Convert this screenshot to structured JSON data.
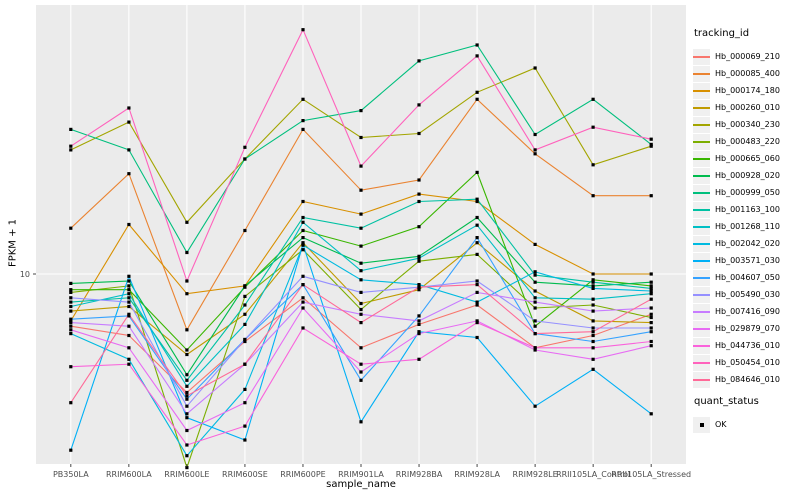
{
  "figure": {
    "panel_bg": "#EBEBEB",
    "grid_color": "#FFFFFF",
    "tick_text_color": "#4D4D4D",
    "point_color": "#000000"
  },
  "chart_data": {
    "type": "line",
    "title": "",
    "xlabel": "sample_name",
    "ylabel": "FPKM + 1",
    "y_scale": "log10",
    "y_tick_labels": [
      "10"
    ],
    "grid": true,
    "legend_position": "right",
    "legend_title": "tracking_id",
    "marker": "black-square",
    "categories": [
      "PB350LA",
      "RRIM600LA",
      "RRIM600LE",
      "RRIM600SE",
      "RRIM600PE",
      "RRIM901LA",
      "RRIM928BA",
      "RRIM928LA",
      "RRIM928LE",
      "RRII105LA_Control",
      "RRII105LA_Stressed"
    ],
    "series": [
      {
        "name": "Hb_000069_210",
        "color": "#F8766D",
        "values": [
          6.3,
          5.8,
          3.5,
          5.5,
          8.1,
          5.2,
          6.4,
          7.6,
          5.2,
          5.8,
          7.0
        ]
      },
      {
        "name": "Hb_000085_400",
        "color": "#EA8331",
        "values": [
          15.0,
          24.3,
          6.1,
          14.7,
          36.0,
          21.0,
          23.0,
          47.0,
          29.0,
          20.0,
          20.0
        ]
      },
      {
        "name": "Hb_000174_180",
        "color": "#D89000",
        "values": [
          6.6,
          15.5,
          8.4,
          9.0,
          19.0,
          17.0,
          20.3,
          19.0,
          13.0,
          10.0,
          10.0
        ]
      },
      {
        "name": "Hb_000260_010",
        "color": "#C09B00",
        "values": [
          7.2,
          7.5,
          4.9,
          7.0,
          13.2,
          7.7,
          8.7,
          13.2,
          8.6,
          6.6,
          6.5
        ]
      },
      {
        "name": "Hb_000340_230",
        "color": "#A3A500",
        "values": [
          30.0,
          38.4,
          15.8,
          27.7,
          47.0,
          33.5,
          34.7,
          50.0,
          62.0,
          26.3,
          31.0
        ]
      },
      {
        "name": "Hb_000483_220",
        "color": "#7CAE00",
        "values": [
          8.5,
          9.0,
          1.8,
          8.2,
          12.4,
          7.3,
          11.2,
          11.9,
          7.4,
          7.6,
          6.8
        ]
      },
      {
        "name": "Hb_000665_060",
        "color": "#39B600",
        "values": [
          8.7,
          8.7,
          5.1,
          8.9,
          14.7,
          12.8,
          15.2,
          24.6,
          6.3,
          9.5,
          9.0
        ]
      },
      {
        "name": "Hb_000928_020",
        "color": "#00BB4E",
        "values": [
          9.2,
          9.4,
          4.1,
          9.0,
          13.8,
          11.0,
          11.7,
          16.5,
          9.3,
          9.0,
          9.3
        ]
      },
      {
        "name": "Hb_000999_050",
        "color": "#00BF7D",
        "values": [
          36.0,
          30.0,
          12.1,
          27.7,
          38.9,
          42.5,
          66.0,
          76.0,
          34.4,
          47.0,
          31.5
        ]
      },
      {
        "name": "Hb_001163_100",
        "color": "#00C1A3",
        "values": [
          7.8,
          8.1,
          3.9,
          7.6,
          16.5,
          15.0,
          19.0,
          19.4,
          9.9,
          9.3,
          8.8
        ]
      },
      {
        "name": "Hb_001268_110",
        "color": "#00BFC4",
        "values": [
          7.5,
          8.4,
          3.7,
          6.4,
          15.8,
          10.3,
          11.5,
          15.4,
          8.1,
          8.0,
          8.4
        ]
      },
      {
        "name": "Hb_002042_020",
        "color": "#00BAE0",
        "values": [
          5.9,
          4.7,
          2.0,
          3.6,
          12.9,
          9.5,
          9.1,
          7.8,
          10.2,
          8.8,
          8.6
        ]
      },
      {
        "name": "Hb_003571_030",
        "color": "#00B0F6",
        "values": [
          2.1,
          9.8,
          2.8,
          2.3,
          13.0,
          2.7,
          6.0,
          5.7,
          3.1,
          4.3,
          2.9
        ]
      },
      {
        "name": "Hb_004607_050",
        "color": "#35A2FF",
        "values": [
          6.7,
          6.9,
          3.3,
          5.6,
          9.1,
          3.9,
          6.9,
          13.8,
          5.9,
          5.5,
          6.0
        ]
      },
      {
        "name": "Hb_005490_030",
        "color": "#9590FF",
        "values": [
          8.1,
          7.8,
          3.1,
          5.6,
          9.8,
          8.5,
          8.9,
          9.4,
          6.6,
          6.2,
          6.2
        ]
      },
      {
        "name": "Hb_007416_090",
        "color": "#C77CFF",
        "values": [
          6.5,
          6.3,
          2.9,
          4.5,
          7.8,
          7.0,
          6.6,
          8.5,
          7.8,
          7.2,
          7.4
        ]
      },
      {
        "name": "Hb_029879_070",
        "color": "#E76BF3",
        "values": [
          6.1,
          5.2,
          2.5,
          3.2,
          7.4,
          4.2,
          5.9,
          6.6,
          5.1,
          4.7,
          5.3
        ]
      },
      {
        "name": "Hb_044736_010",
        "color": "#FA62DB",
        "values": [
          4.4,
          4.5,
          2.2,
          2.6,
          6.2,
          4.5,
          4.7,
          6.5,
          5.2,
          5.2,
          5.5
        ]
      },
      {
        "name": "Hb_050454_010",
        "color": "#FF62BC",
        "values": [
          31.0,
          43.5,
          9.4,
          30.7,
          87.0,
          26.0,
          44.7,
          69.0,
          30.0,
          36.7,
          33.0
        ]
      },
      {
        "name": "Hb_084646_010",
        "color": "#FF6A98",
        "values": [
          3.2,
          7.0,
          3.4,
          4.5,
          9.1,
          6.5,
          8.9,
          9.1,
          5.9,
          6.0,
          8.0
        ]
      }
    ],
    "quant_status": {
      "title": "quant_status",
      "value": "OK",
      "marker": "black-square"
    }
  }
}
